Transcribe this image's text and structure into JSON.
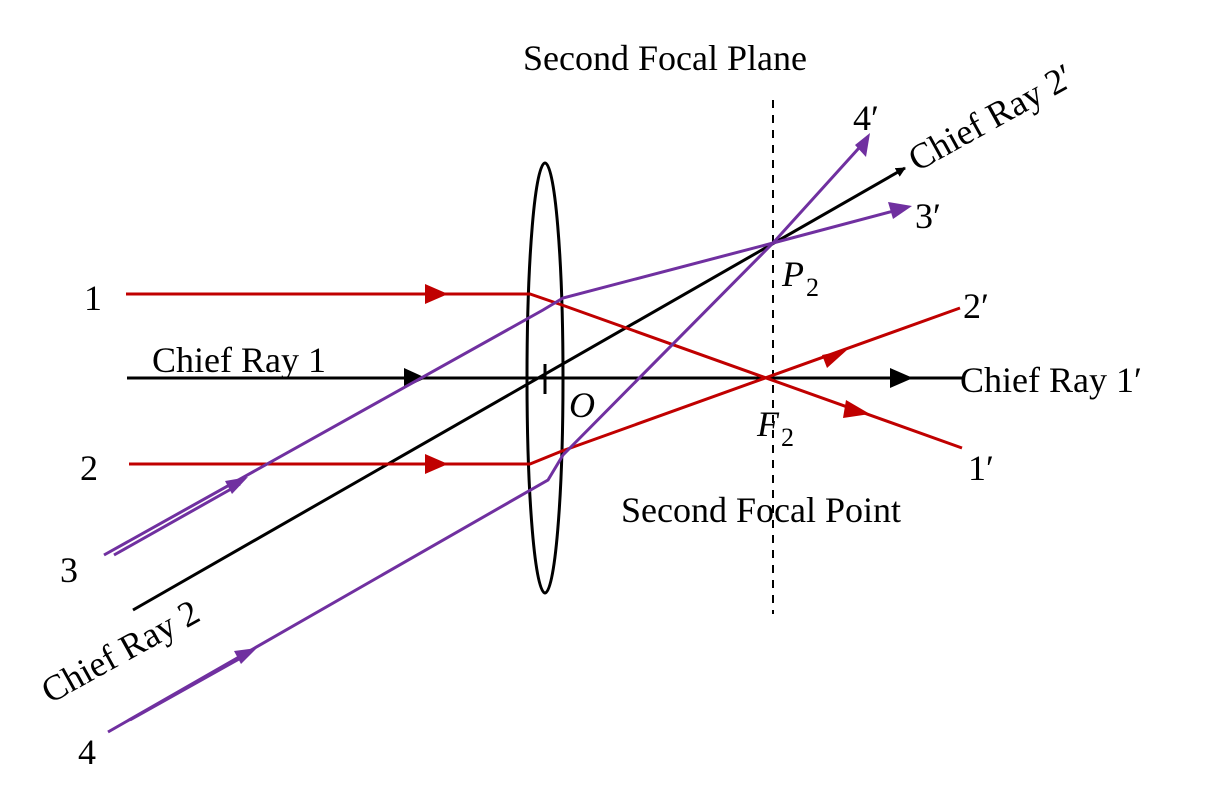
{
  "colors": {
    "parallel_rays": "#c00000",
    "oblique_rays": "#7030a0",
    "chief_rays": "#000000",
    "lens": "#000000"
  },
  "labels": {
    "focal_plane_title": "Second Focal Plane",
    "focal_point_title": "Second Focal Point",
    "ray_1": "1",
    "ray_2": "2",
    "ray_3": "3",
    "ray_4": "4",
    "ray_1_out": "1′",
    "ray_2_out": "2′",
    "ray_3_out": "3′",
    "ray_4_out": "4′",
    "chief_ray_1": "Chief Ray 1",
    "chief_ray_1_out": "Chief Ray 1′",
    "chief_ray_2": "Chief Ray 2",
    "chief_ray_2_out": "Chief Ray 2′",
    "center_O": "O",
    "focus_F": "F",
    "focus_F_sub": "2",
    "point_P": "P",
    "point_P_sub": "2"
  },
  "icons": {
    "lens": "biconvex-lens-icon",
    "arrowhead": "arrowhead-icon"
  }
}
